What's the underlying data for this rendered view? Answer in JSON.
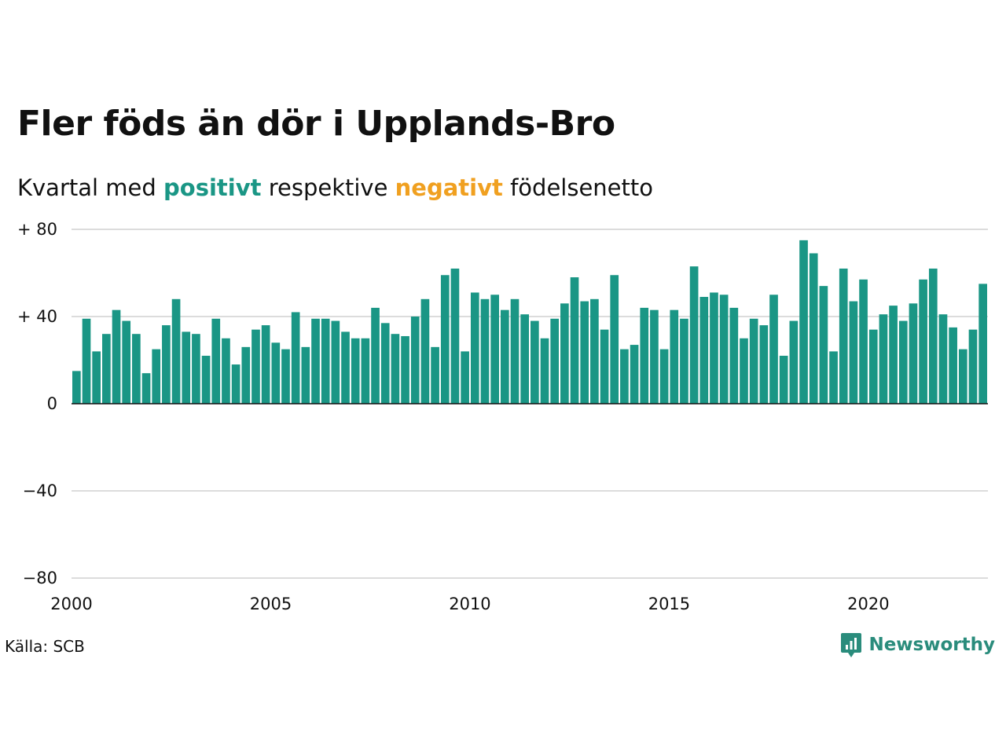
{
  "title": "Fler föds än dör i Upplands-Bro",
  "subtitle": {
    "prefix": "Kvartal med",
    "positive": "positivt",
    "middle": "respektive",
    "negative": "negativt",
    "suffix": "födelsenetto"
  },
  "source": "Källa: SCB",
  "brand": "Newsworthy",
  "colors": {
    "positive": "#1a9685",
    "negative": "#f0a020",
    "grid": "#dcdcdc",
    "axis": "#111111",
    "brand": "#2a8c7c"
  },
  "chart_data": {
    "type": "bar",
    "x_start_year": 2000,
    "values_per_year": 4,
    "x_ticks": [
      "2000",
      "2005",
      "2010",
      "2015",
      "2020"
    ],
    "y_ticks": [
      "−80",
      "−40",
      "0",
      "+ 40",
      "+ 80"
    ],
    "ylim": [
      -80,
      80
    ],
    "values": [
      15,
      39,
      24,
      32,
      43,
      38,
      32,
      14,
      25,
      36,
      48,
      33,
      32,
      22,
      39,
      30,
      18,
      26,
      34,
      36,
      28,
      25,
      42,
      26,
      39,
      39,
      38,
      33,
      30,
      30,
      44,
      37,
      32,
      31,
      40,
      48,
      26,
      59,
      62,
      24,
      51,
      48,
      50,
      43,
      48,
      41,
      38,
      30,
      39,
      46,
      58,
      47,
      48,
      34,
      59,
      25,
      27,
      44,
      43,
      25,
      43,
      39,
      63,
      49,
      51,
      50,
      44,
      30,
      39,
      36,
      50,
      22,
      38,
      75,
      69,
      54,
      24,
      62,
      47,
      57,
      34,
      41,
      45,
      38,
      46,
      57,
      62,
      41,
      35,
      25,
      34,
      55
    ]
  }
}
